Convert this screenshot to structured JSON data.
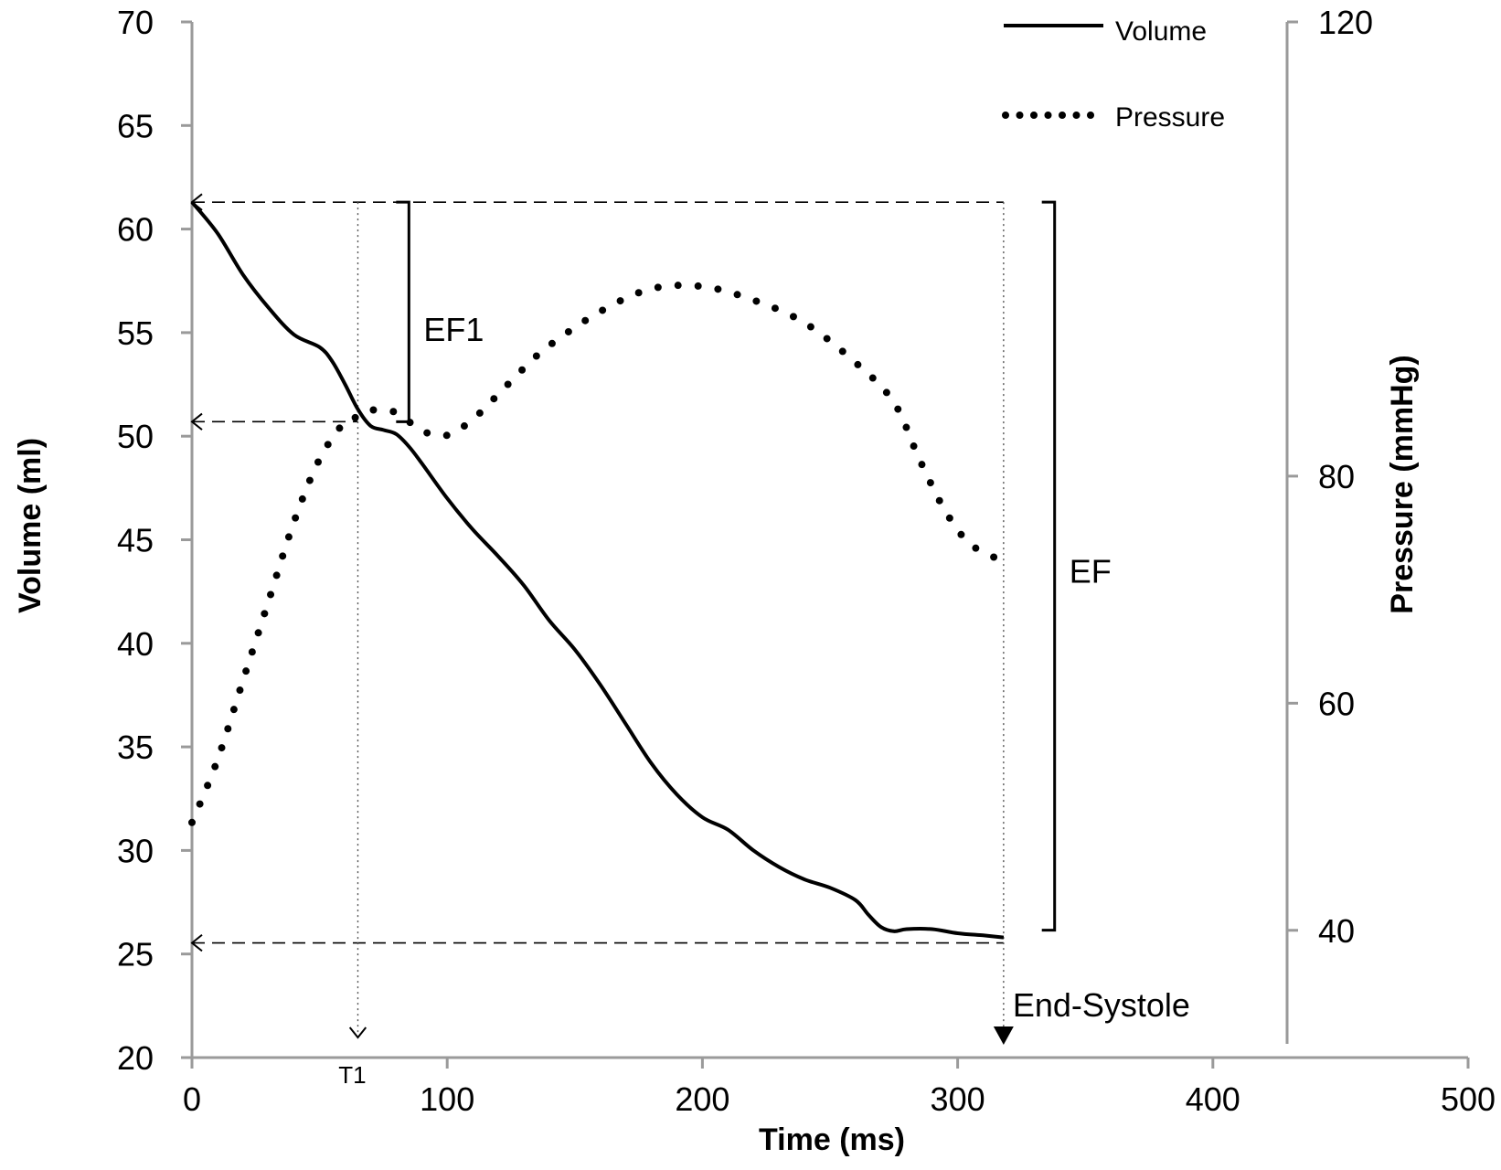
{
  "chart_data": {
    "type": "line",
    "xlabel": "Time (ms)",
    "ylabel": "Volume (ml)",
    "y2label": "Pressure (mmHg)",
    "xlim": [
      0,
      500
    ],
    "ylim": [
      20,
      70
    ],
    "y2lim": [
      30,
      120
    ],
    "x_ticks": [
      "0",
      "100",
      "200",
      "300",
      "400",
      "500"
    ],
    "y_ticks": [
      "20",
      "25",
      "30",
      "35",
      "40",
      "45",
      "50",
      "55",
      "60",
      "65",
      "70"
    ],
    "y2_ticks": [
      "40",
      "60",
      "80",
      "120"
    ],
    "grid": false,
    "legend_position": "top-right",
    "series": [
      {
        "name": "Volume",
        "axis": "left",
        "style": "solid",
        "x": [
          0,
          10,
          20,
          30,
          40,
          50,
          55,
          60,
          65,
          70,
          75,
          80,
          85,
          90,
          100,
          110,
          120,
          130,
          140,
          150,
          160,
          170,
          180,
          190,
          200,
          210,
          220,
          230,
          240,
          250,
          260,
          265,
          270,
          275,
          280,
          290,
          300,
          310,
          318
        ],
        "values": [
          61.3,
          59.8,
          57.8,
          56.2,
          54.9,
          54.3,
          53.6,
          52.5,
          51.3,
          50.5,
          50.3,
          50.1,
          49.5,
          48.7,
          47.0,
          45.5,
          44.2,
          42.8,
          41.1,
          39.7,
          38.0,
          36.1,
          34.2,
          32.7,
          31.6,
          31.0,
          30.0,
          29.2,
          28.6,
          28.2,
          27.6,
          26.9,
          26.3,
          26.1,
          26.2,
          26.2,
          26.0,
          25.9,
          25.8
        ]
      },
      {
        "name": "Pressure",
        "axis": "right",
        "style": "dotted",
        "x": [
          0,
          10,
          20,
          30,
          40,
          50,
          60,
          65,
          70,
          80,
          90,
          100,
          110,
          120,
          130,
          140,
          160,
          180,
          200,
          220,
          240,
          260,
          275,
          285,
          295,
          305,
          318
        ],
        "values": [
          49.5,
          55.0,
          62.0,
          69.0,
          76.0,
          81.5,
          84.8,
          85.2,
          85.8,
          85.6,
          84.0,
          83.6,
          85.0,
          87.2,
          89.5,
          91.5,
          94.5,
          96.5,
          96.7,
          95.5,
          93.5,
          90.0,
          86.5,
          81.5,
          77.0,
          74.0,
          72.5
        ]
      }
    ],
    "annotations": [
      {
        "label": "EF1",
        "from_volume": 61.3,
        "to_volume": 50.7
      },
      {
        "label": "EF",
        "from_volume": 61.3,
        "to_volume": 25.8
      },
      {
        "label": "T1",
        "x": 65
      },
      {
        "label": "End-Systole",
        "x": 318
      }
    ]
  }
}
